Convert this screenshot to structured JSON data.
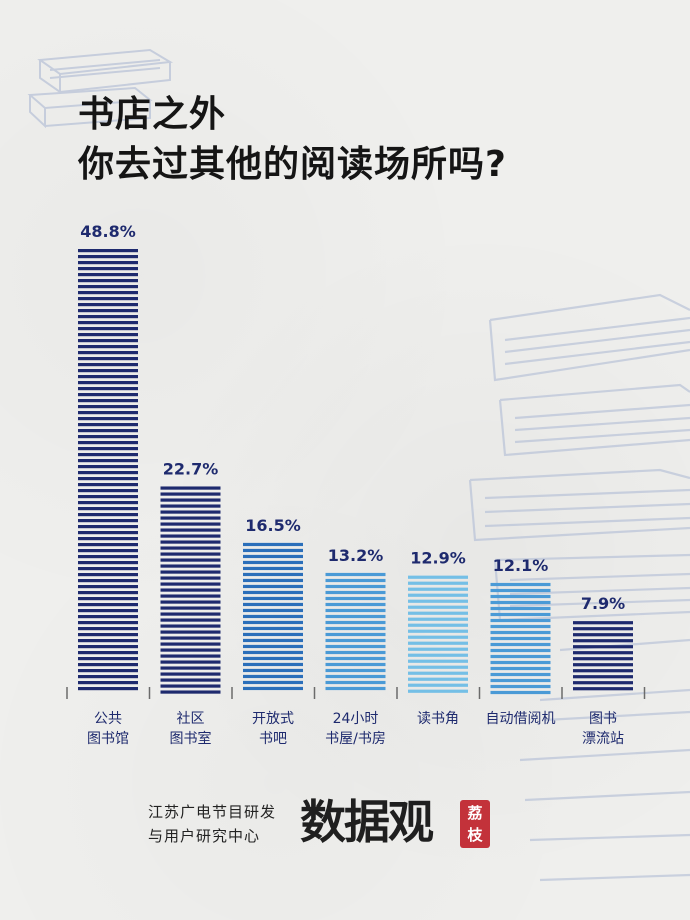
{
  "header": {
    "title_line1": "书店之外",
    "title_line2": "你去过其他的阅读场所吗?"
  },
  "chart_data": {
    "type": "bar",
    "title": "书店之外 你去过其他的阅读场所吗?",
    "categories": [
      [
        "公共",
        "图书馆"
      ],
      [
        "社区",
        "图书室"
      ],
      [
        "开放式",
        "书吧"
      ],
      [
        "24小时",
        "书屋/书房"
      ],
      [
        "读书角"
      ],
      [
        "自动借阅机"
      ],
      [
        "图书",
        "漂流站"
      ]
    ],
    "values": [
      48.8,
      22.7,
      16.5,
      13.2,
      12.9,
      12.1,
      7.9
    ],
    "value_labels": [
      "48.8%",
      "22.7%",
      "16.5%",
      "13.2%",
      "12.9%",
      "12.1%",
      "7.9%"
    ],
    "unit": "%",
    "colors": [
      "#1e2a6e",
      "#1e2a6e",
      "#2b6fba",
      "#4a9ad6",
      "#74bfe6",
      "#4a9ad6",
      "#1e2a6e"
    ],
    "ylim": [
      0,
      48.8
    ],
    "grid": false,
    "legend": "none"
  },
  "footer": {
    "source_line1": "江苏广电节目研发",
    "source_line2": "与用户研究中心",
    "brand": "数据观",
    "brand_seal": "荔枝"
  }
}
